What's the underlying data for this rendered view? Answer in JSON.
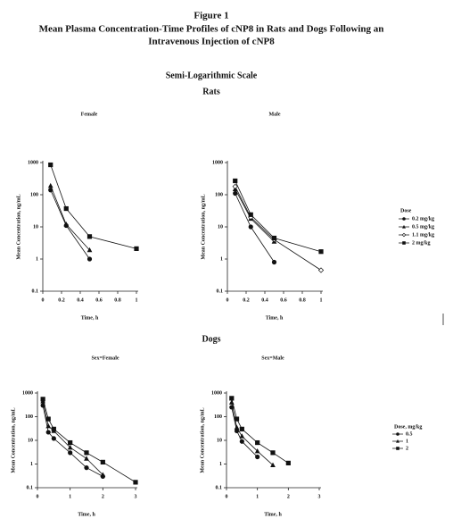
{
  "doc": {
    "figure": "Figure 1",
    "title_lines": [
      "Mean Plasma Concentration-Time Profiles of cNP8 in Rats and Dogs Following an",
      "Intravenous Injection of cNP8"
    ],
    "scale": "Semi-Logarithmic Scale",
    "sections": [
      "Rats",
      "Dogs"
    ]
  },
  "chart_data": [
    {
      "type": "line",
      "title": "Female",
      "x_label": "Time, h",
      "y_label": "Mean Concentration, ng/mL",
      "log_y": true,
      "x": [
        0.083,
        0.25,
        0.5,
        1
      ],
      "xlim": [
        0,
        1
      ],
      "xticks": [
        0,
        0.2,
        0.4,
        0.6,
        0.8,
        1
      ],
      "ylim": [
        0.1,
        1000
      ],
      "yticks": [
        0.1,
        1,
        10,
        100,
        1000
      ],
      "series": [
        {
          "color": "#111",
          "marker": "circle",
          "values": [
            140,
            11,
            1.0,
            null
          ]
        },
        {
          "color": "#111",
          "marker": "triangle",
          "values": [
            190,
            12,
            1.9,
            null
          ]
        },
        {
          "color": "#111",
          "marker": "square",
          "values": [
            850,
            37,
            5,
            2.1
          ]
        }
      ]
    },
    {
      "type": "line",
      "title": "Male",
      "x_label": "Time, h",
      "y_label": "Mean Concentration, ng/mL",
      "log_y": true,
      "x": [
        0.083,
        0.25,
        0.5,
        1
      ],
      "xlim": [
        0,
        1
      ],
      "xticks": [
        0,
        0.2,
        0.4,
        0.6,
        0.8,
        1
      ],
      "ylim": [
        0.1,
        1000
      ],
      "yticks": [
        0.1,
        1,
        10,
        100,
        1000
      ],
      "legend": "right",
      "legend_title": "Dose",
      "series": [
        {
          "name": "0.2 mg/kg",
          "color": "#111",
          "marker": "circle",
          "values": [
            110,
            10,
            0.8,
            null
          ]
        },
        {
          "name": "0.5 mg/kg",
          "color": "#111",
          "marker": "triangle",
          "values": [
            150,
            18,
            3.5,
            null
          ]
        },
        {
          "name": "1.1 mg/kg",
          "color": "#111",
          "marker": "diamond-open",
          "values": [
            180,
            20,
            4,
            0.45
          ]
        },
        {
          "name": "2 mg/kg",
          "color": "#111",
          "marker": "square",
          "values": [
            270,
            24,
            4.5,
            1.7
          ]
        }
      ]
    },
    {
      "type": "line",
      "title": "Sex=Female",
      "x_label": "Time, h",
      "y_label": "Mean Concentration, ng/mL",
      "log_y": true,
      "x": [
        0.167,
        0.333,
        0.5,
        1,
        1.5,
        2,
        3
      ],
      "xlim": [
        0,
        3
      ],
      "xticks": [
        0,
        1,
        2,
        3
      ],
      "ylim": [
        0.1,
        1000
      ],
      "yticks": [
        0.1,
        1,
        10,
        100,
        1000
      ],
      "series": [
        {
          "color": "#111",
          "marker": "circle",
          "values": [
            300,
            22,
            12,
            3,
            0.7,
            0.3,
            null
          ]
        },
        {
          "color": "#111",
          "marker": "triangle",
          "values": [
            450,
            40,
            25,
            5,
            1.7,
            0.35,
            null
          ]
        },
        {
          "color": "#111",
          "marker": "square",
          "values": [
            550,
            80,
            30,
            8,
            3,
            1.2,
            0.17
          ]
        }
      ]
    },
    {
      "type": "line",
      "title": "Sex=Male",
      "x_label": "Time, h",
      "y_label": "Mean Concentration, ng/mL",
      "log_y": true,
      "x": [
        0.167,
        0.333,
        0.5,
        1,
        1.5,
        2,
        3
      ],
      "xlim": [
        0,
        3
      ],
      "xticks": [
        0,
        1,
        2,
        3
      ],
      "ylim": [
        0.1,
        1000
      ],
      "yticks": [
        0.1,
        1,
        10,
        100,
        1000
      ],
      "legend": "right",
      "legend_title": "Dose, mg/kg",
      "series": [
        {
          "name": "0.5",
          "color": "#111",
          "marker": "circle",
          "values": [
            250,
            25,
            9,
            2,
            null,
            null,
            null
          ]
        },
        {
          "name": "1",
          "color": "#111",
          "marker": "triangle",
          "values": [
            400,
            35,
            15,
            3.5,
            0.9,
            null,
            null
          ]
        },
        {
          "name": "2",
          "color": "#111",
          "marker": "square",
          "values": [
            600,
            80,
            30,
            8,
            3,
            1.1,
            null
          ]
        }
      ]
    }
  ]
}
